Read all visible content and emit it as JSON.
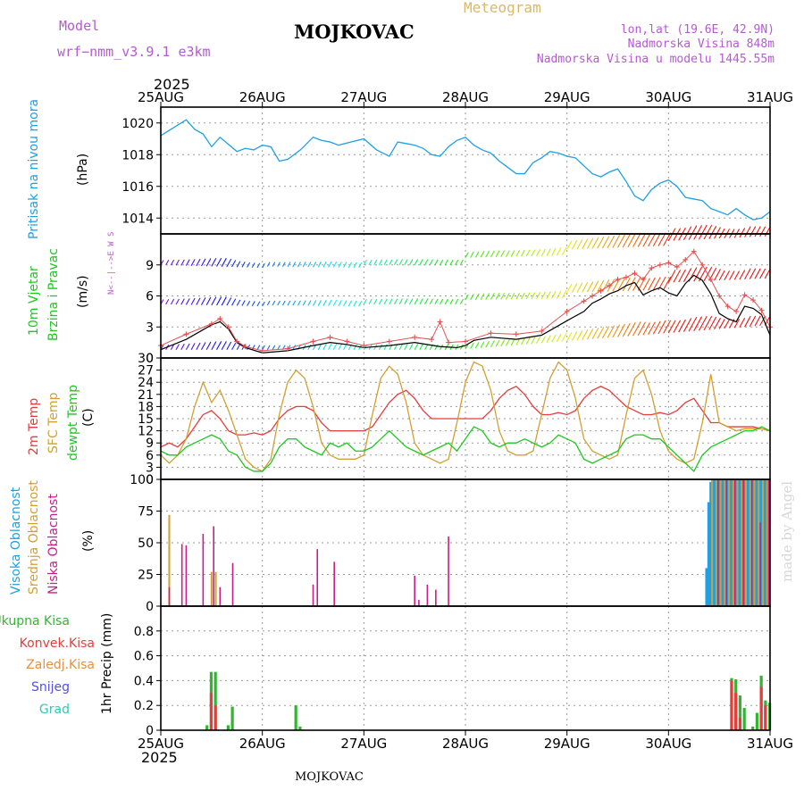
{
  "header": {
    "model_label": "Model",
    "model_name": "wrf−nmm_v3.9.1 e3km",
    "station": "MOJKOVAC",
    "subtitle": "Meteogram",
    "coords": "lon,lat (19.6E, 42.9N)",
    "elevation": "Nadmorska Visina 848m",
    "model_elevation": "Nadmorska Visina u modelu 1445.55m",
    "year_top": "2025",
    "year_bottom": "2025",
    "footer_station": "MOJKOVAC",
    "watermark": "made by Angel"
  },
  "colors": {
    "pressure": "#1ea0e6",
    "t2m": "#e63c3c",
    "sfc": "#d2a032",
    "dewpt": "#1ec81e",
    "wind_speed": "#000000",
    "gust": "#e65050",
    "high_cloud": "#1ea0e6",
    "mid_cloud": "#d2a032",
    "low_cloud": "#c81e8c",
    "precip_total": "#32b432",
    "precip_conv": "#e63c3c",
    "header_purple": "#b45ad2",
    "header_gold": "#d8b96a"
  },
  "chart_data": [
    {
      "type": "line",
      "panel": "pressure",
      "title": "Pritisak na nivou mora",
      "ylabel": "(hPa)",
      "ylim": [
        1013,
        1021
      ],
      "yticks": [
        1014,
        1016,
        1018,
        1020
      ],
      "xlim": [
        0,
        144
      ],
      "x_tick_labels": [
        "25AUG",
        "26AUG",
        "27AUG",
        "28AUG",
        "29AUG",
        "30AUG",
        "31AUG"
      ],
      "x_hours": [
        0,
        3,
        6,
        8,
        10,
        12,
        14,
        18,
        20,
        22,
        24,
        26,
        28,
        30,
        33,
        36,
        38,
        40,
        42,
        45,
        48,
        51,
        54,
        56,
        58,
        60,
        62,
        64,
        66,
        68,
        70,
        72,
        74,
        76,
        78,
        80,
        82,
        84,
        86,
        88,
        90,
        92,
        94,
        96,
        98,
        100,
        102,
        104,
        106,
        108,
        110,
        112,
        114,
        116,
        118,
        120,
        122,
        124,
        126,
        128,
        130,
        132,
        134,
        136,
        138,
        140,
        142,
        144
      ],
      "values": [
        1019.2,
        1019.7,
        1020.2,
        1019.6,
        1019.3,
        1018.5,
        1019.1,
        1018.2,
        1018.4,
        1018.3,
        1018.6,
        1018.5,
        1017.6,
        1017.7,
        1018.3,
        1019.1,
        1018.9,
        1018.8,
        1018.6,
        1018.8,
        1019.0,
        1018.3,
        1017.9,
        1018.8,
        1018.7,
        1018.6,
        1018.4,
        1018.0,
        1017.9,
        1018.5,
        1018.9,
        1019.1,
        1018.6,
        1018.3,
        1018.1,
        1017.6,
        1017.2,
        1016.8,
        1016.8,
        1017.5,
        1017.8,
        1018.2,
        1018.1,
        1017.9,
        1017.8,
        1017.3,
        1016.8,
        1016.6,
        1016.9,
        1017.1,
        1016.3,
        1015.4,
        1015.1,
        1015.8,
        1016.2,
        1016.4,
        1016.0,
        1015.3,
        1015.2,
        1015.1,
        1014.6,
        1014.4,
        1014.2,
        1014.6,
        1014.2,
        1013.9,
        1014.0,
        1014.4
      ]
    },
    {
      "type": "line",
      "panel": "wind",
      "title": "10m Vjetar",
      "subtitle": "Brzina i Pravac",
      "ylabel": "(m/s)",
      "compass_label": "N<--|-->E W S",
      "ylim": [
        0,
        12
      ],
      "yticks": [
        0,
        3,
        6,
        9
      ],
      "xlim": [
        0,
        144
      ],
      "series": [
        {
          "name": "wind_speed",
          "x": [
            0,
            6,
            12,
            14,
            16,
            18,
            20,
            24,
            30,
            36,
            40,
            44,
            48,
            54,
            60,
            66,
            70,
            72,
            74,
            78,
            84,
            90,
            96,
            100,
            102,
            104,
            106,
            108,
            110,
            112,
            114,
            116,
            118,
            120,
            122,
            124,
            126,
            128,
            130,
            132,
            134,
            136,
            138,
            140,
            142,
            144
          ],
          "values": [
            0.8,
            1.8,
            3.2,
            3.5,
            2.8,
            1.5,
            1.0,
            0.5,
            0.7,
            1.2,
            1.5,
            1.3,
            1.0,
            1.2,
            1.5,
            1.1,
            1.0,
            1.2,
            1.7,
            2.0,
            1.8,
            2.2,
            3.6,
            4.5,
            5.3,
            5.7,
            6.2,
            6.5,
            7.0,
            7.3,
            6.1,
            6.5,
            6.8,
            6.3,
            6.0,
            7.2,
            8.0,
            7.5,
            6.2,
            4.3,
            3.8,
            3.5,
            5.0,
            4.8,
            4.2,
            2.2
          ]
        },
        {
          "name": "gust",
          "x": [
            0,
            6,
            12,
            14,
            16,
            18,
            20,
            24,
            30,
            36,
            40,
            44,
            48,
            54,
            60,
            64,
            66,
            68,
            72,
            78,
            84,
            90,
            96,
            100,
            102,
            104,
            106,
            108,
            110,
            112,
            114,
            116,
            118,
            120,
            122,
            124,
            126,
            128,
            130,
            132,
            134,
            136,
            138,
            140,
            142,
            144
          ],
          "values": [
            1.2,
            2.3,
            3.3,
            3.8,
            3.0,
            1.6,
            1.1,
            0.7,
            0.9,
            1.6,
            2.0,
            1.6,
            1.2,
            1.6,
            2.0,
            1.8,
            3.5,
            1.5,
            1.6,
            2.4,
            2.3,
            2.6,
            4.5,
            5.5,
            6.0,
            6.5,
            7.0,
            7.6,
            7.8,
            8.2,
            7.6,
            8.7,
            9.0,
            9.2,
            8.8,
            9.5,
            10.3,
            9.0,
            7.6,
            6.0,
            5.0,
            4.5,
            6.1,
            5.6,
            4.6,
            3.0
          ]
        }
      ]
    },
    {
      "type": "line",
      "panel": "temperature",
      "ylabel": "(C)",
      "legend": [
        "2m Temp",
        "SFC Temp",
        "dewpt Temp"
      ],
      "ylim": [
        0,
        30
      ],
      "yticks": [
        0,
        3,
        6,
        9,
        12,
        15,
        18,
        21,
        24,
        27,
        30
      ],
      "xlim": [
        0,
        144
      ],
      "series": [
        {
          "name": "2m Temp",
          "x": [
            0,
            2,
            4,
            6,
            8,
            10,
            12,
            14,
            16,
            18,
            20,
            22,
            24,
            26,
            28,
            30,
            32,
            34,
            36,
            38,
            40,
            42,
            44,
            46,
            48,
            50,
            52,
            54,
            56,
            58,
            60,
            62,
            64,
            66,
            68,
            70,
            72,
            74,
            76,
            78,
            80,
            82,
            84,
            86,
            88,
            90,
            92,
            94,
            96,
            98,
            100,
            102,
            104,
            106,
            108,
            110,
            112,
            114,
            116,
            118,
            120,
            122,
            124,
            126,
            128,
            130,
            132,
            134,
            136,
            138,
            140,
            142,
            144
          ],
          "values": [
            8,
            9,
            8,
            10,
            13,
            16,
            17,
            15,
            12,
            11,
            11,
            11.5,
            11,
            12,
            15,
            17,
            18,
            18,
            17,
            14,
            12,
            12,
            12,
            12,
            12,
            13,
            16,
            19,
            21,
            22,
            20,
            17,
            15,
            15,
            15,
            15,
            15,
            15,
            15,
            17,
            20,
            22,
            23,
            21,
            18,
            16,
            16,
            16.5,
            16,
            17,
            20,
            22,
            23,
            22,
            20,
            18,
            17,
            16,
            16,
            16.5,
            16,
            17,
            19,
            20,
            17,
            14,
            14,
            13,
            13,
            13,
            13,
            12.5,
            12
          ]
        },
        {
          "name": "SFC Temp",
          "x": [
            0,
            2,
            4,
            6,
            8,
            10,
            12,
            14,
            16,
            18,
            20,
            22,
            24,
            26,
            28,
            30,
            32,
            34,
            36,
            38,
            40,
            42,
            44,
            46,
            48,
            50,
            52,
            54,
            56,
            58,
            60,
            62,
            64,
            66,
            68,
            70,
            72,
            74,
            76,
            78,
            80,
            82,
            84,
            86,
            88,
            90,
            92,
            94,
            96,
            98,
            100,
            102,
            104,
            106,
            108,
            110,
            112,
            114,
            116,
            118,
            120,
            122,
            124,
            126,
            128,
            130,
            132,
            134,
            136,
            138,
            140,
            142,
            144
          ],
          "values": [
            6,
            4,
            6,
            10,
            18,
            24,
            19,
            22,
            17,
            11,
            5,
            3,
            2,
            5,
            16,
            24,
            27,
            25,
            18,
            9,
            6,
            5,
            5,
            5,
            6,
            16,
            25,
            28,
            26,
            19,
            9,
            6,
            5,
            4,
            5,
            14,
            24,
            29,
            28,
            22,
            12,
            7,
            6,
            6,
            7,
            16,
            25,
            29,
            27,
            20,
            10,
            7,
            6,
            5,
            6,
            16,
            25,
            27,
            21,
            12,
            7,
            5,
            4,
            5,
            14,
            26,
            14,
            13,
            12,
            12.5,
            12.5,
            12.5,
            12
          ]
        },
        {
          "name": "dewpt Temp",
          "x": [
            0,
            2,
            4,
            6,
            8,
            10,
            12,
            14,
            16,
            18,
            20,
            22,
            24,
            26,
            28,
            30,
            32,
            34,
            36,
            38,
            40,
            42,
            44,
            46,
            48,
            50,
            52,
            54,
            56,
            58,
            60,
            62,
            64,
            66,
            68,
            70,
            72,
            74,
            76,
            78,
            80,
            82,
            84,
            86,
            88,
            90,
            92,
            94,
            96,
            98,
            100,
            102,
            104,
            106,
            108,
            110,
            112,
            114,
            116,
            118,
            120,
            122,
            124,
            126,
            128,
            130,
            132,
            134,
            136,
            138,
            140,
            142,
            144
          ],
          "values": [
            7,
            6,
            6,
            8,
            9,
            10,
            11,
            10,
            7,
            6,
            3,
            2,
            2,
            4,
            8,
            10,
            10,
            8,
            7,
            6,
            9,
            8,
            9,
            7,
            7,
            8,
            10,
            12,
            10,
            8,
            7,
            6,
            7,
            8,
            9,
            7,
            10,
            13,
            12,
            9,
            8,
            9,
            9,
            10,
            9,
            8,
            9,
            11,
            10,
            9,
            5,
            4,
            5,
            6,
            7,
            10,
            11,
            11,
            10,
            10,
            8,
            6,
            4,
            2,
            6,
            8,
            9,
            10,
            11,
            12,
            12,
            13,
            12
          ]
        }
      ]
    },
    {
      "type": "bar",
      "panel": "clouds",
      "ylabel": "(%)",
      "legend": [
        "Visoka Oblacnost",
        "Srednja Oblacnost",
        "Niska Oblacnost"
      ],
      "ylim": [
        0,
        100
      ],
      "yticks": [
        0,
        25,
        50,
        75,
        100
      ],
      "xlim": [
        0,
        144
      ],
      "series": [
        {
          "name": "Visoka Oblacnost",
          "x": [
            129,
            129.5,
            130,
            130.5,
            131,
            131.5,
            132,
            132.5,
            133,
            133.5,
            134,
            134.5,
            135,
            135.5,
            136,
            136.5,
            137,
            137.5,
            138,
            138.5,
            139,
            139.5,
            140,
            140.5,
            141,
            141.5,
            142,
            142.5,
            143,
            143.5
          ],
          "values": [
            30,
            82,
            98,
            100,
            100,
            100,
            100,
            100,
            100,
            100,
            100,
            100,
            100,
            100,
            100,
            100,
            100,
            100,
            100,
            100,
            100,
            100,
            100,
            100,
            100,
            100,
            100,
            100,
            100,
            100
          ]
        },
        {
          "name": "Srednja Oblacnost",
          "x": [
            2,
            12,
            13,
            130.3,
            131.3,
            132.3,
            133.3,
            134.3,
            135.3,
            136.3,
            137.3,
            138.3,
            139.3,
            140.3,
            141.3,
            142.3,
            143.3
          ],
          "values": [
            72,
            27,
            27,
            100,
            100,
            100,
            100,
            100,
            100,
            100,
            100,
            100,
            100,
            100,
            100,
            100,
            100
          ]
        },
        {
          "name": "Niska Oblacnost",
          "x": [
            2,
            5,
            6,
            10,
            12.5,
            14,
            17,
            36,
            37,
            41,
            60,
            61,
            63,
            65,
            68,
            131.7,
            133.7,
            135.7,
            137.7,
            139.7,
            141.7,
            143.7
          ],
          "values": [
            15,
            49,
            48,
            57,
            63,
            15,
            34,
            17,
            45,
            35,
            24,
            5,
            17,
            13,
            55,
            100,
            100,
            100,
            100,
            100,
            66,
            100
          ]
        }
      ]
    },
    {
      "type": "bar",
      "panel": "precipitation",
      "ylabel": "1hr Precip (mm)",
      "legend": [
        "Ukupna Kisa",
        "Konvek.Kisa",
        "Zaledj.Kisa",
        "Snijeg",
        "Grad"
      ],
      "ylim": [
        0,
        1
      ],
      "yticks": [
        0,
        0.2,
        0.4,
        0.6,
        0.8
      ],
      "xlim": [
        0,
        144
      ],
      "series": [
        {
          "name": "Ukupna Kisa",
          "x": [
            11,
            12,
            13,
            16,
            17,
            32,
            33,
            135,
            136,
            137,
            138,
            140,
            141,
            142,
            143,
            144
          ],
          "values": [
            0.04,
            0.47,
            0.47,
            0.04,
            0.19,
            0.2,
            0.03,
            0.42,
            0.41,
            0.28,
            0.18,
            0.03,
            0.14,
            0.44,
            0.24,
            0.22
          ]
        },
        {
          "name": "Konvek.Kisa",
          "x": [
            12,
            13,
            135,
            136,
            137,
            142,
            143
          ],
          "values": [
            0.3,
            0.2,
            0.4,
            0.3,
            0.1,
            0.35,
            0.2
          ]
        }
      ]
    }
  ]
}
